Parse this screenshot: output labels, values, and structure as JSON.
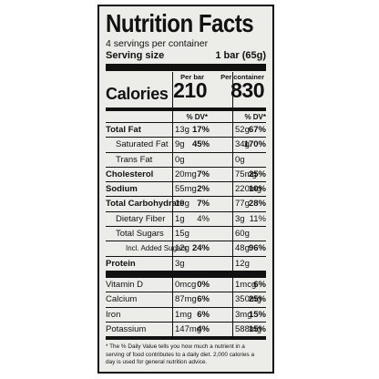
{
  "title": "Nutrition Facts",
  "servings": "4 servings per container",
  "serving_size_label": "Serving size",
  "serving_size_value": "1 bar (65g)",
  "calories_label": "Calories",
  "col1_header": "Per bar",
  "col2_header": "Per container",
  "cal1": "210",
  "cal2": "830",
  "dv_header": "% DV*",
  "rows": [
    {
      "name": "Total Fat",
      "style": "b",
      "a1": "13g",
      "d1": "17%",
      "a2": "52g",
      "d2": "67%"
    },
    {
      "name": "Saturated Fat",
      "style": "indent",
      "a1": "9g",
      "d1": "45%",
      "a2": "34g",
      "d2": "170%"
    },
    {
      "name": "Trans Fat",
      "style": "indent",
      "a1": "0g",
      "d1": "",
      "a2": "0g",
      "d2": ""
    },
    {
      "name": "Cholesterol",
      "style": "b",
      "a1": "20mg",
      "d1": "7%",
      "a2": "75mg",
      "d2": "25%"
    },
    {
      "name": "Sodium",
      "style": "b",
      "a1": "55mg",
      "d1": "2%",
      "a2": "220mg",
      "d2": "10%"
    },
    {
      "name": "Total Carbohydrate",
      "style": "b",
      "a1": "19g",
      "d1": "7%",
      "a2": "77g",
      "d2": "28%"
    },
    {
      "name": "Dietary Fiber",
      "style": "indent",
      "a1": "1g",
      "d1": "4%",
      "a2": "3g",
      "d2": "11%"
    },
    {
      "name": "Total Sugars",
      "style": "indent",
      "a1": "15g",
      "d1": "",
      "a2": "60g",
      "d2": ""
    },
    {
      "name": "Incl. Added Sugars",
      "style": "indent2",
      "a1": "12g",
      "d1": "24%",
      "a2": "48g",
      "d2": "96%"
    },
    {
      "name": "Protein",
      "style": "b",
      "a1": "3g",
      "d1": "",
      "a2": "12g",
      "d2": ""
    }
  ],
  "vitamins": [
    {
      "name": "Vitamin D",
      "a1": "0mcg",
      "d1": "0%",
      "a2": "1mcg",
      "d2": "6%"
    },
    {
      "name": "Calcium",
      "a1": "87mg",
      "d1": "6%",
      "a2": "350mg",
      "d2": "25%"
    },
    {
      "name": "Iron",
      "a1": "1mg",
      "d1": "6%",
      "a2": "3mg",
      "d2": "15%"
    },
    {
      "name": "Potassium",
      "a1": "147mg",
      "d1": "4%",
      "a2": "588mg",
      "d2": "15%"
    }
  ],
  "footnote": "* The % Daily Value tells you how much a nutrient in a serving of food contributes to a daily diet. 2,000 calories a day is used for general nutrition advice."
}
